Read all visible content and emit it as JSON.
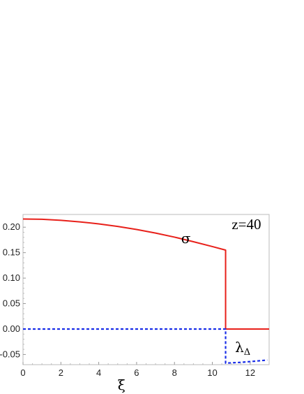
{
  "chart_data": {
    "type": "line",
    "xlabel": "ξ",
    "ylabel": "",
    "xlim": [
      0,
      13
    ],
    "ylim": [
      -0.07,
      0.225
    ],
    "x_ticks": [
      0,
      2,
      4,
      6,
      8,
      10,
      12
    ],
    "y_ticks": [
      -0.05,
      0.0,
      0.05,
      0.1,
      0.15,
      0.2
    ],
    "y_tick_labels": [
      "-0.05",
      "0.00",
      "0.05",
      "0.10",
      "0.15",
      "0.20"
    ],
    "grid": false,
    "annotations": [
      {
        "text": "z=40",
        "x": 11.8,
        "y": 0.196
      },
      {
        "text": "σ",
        "x": 8.6,
        "y": 0.169
      },
      {
        "text": "λΔ",
        "x": 11.2,
        "y": -0.045
      }
    ],
    "series": [
      {
        "name": "σ",
        "color": "#e8201a",
        "style": "solid",
        "points": [
          [
            0,
            0.216
          ],
          [
            1,
            0.2155
          ],
          [
            2,
            0.2135
          ],
          [
            3,
            0.2105
          ],
          [
            4,
            0.2065
          ],
          [
            5,
            0.2015
          ],
          [
            6,
            0.1955
          ],
          [
            7,
            0.1885
          ],
          [
            8,
            0.1805
          ],
          [
            9,
            0.1715
          ],
          [
            10,
            0.162
          ],
          [
            10.7,
            0.155
          ],
          [
            10.7,
            0.0
          ],
          [
            13,
            0.0
          ]
        ]
      },
      {
        "name": "λΔ",
        "color": "#1a2ee8",
        "style": "dashed",
        "points": [
          [
            0,
            0.0
          ],
          [
            10.7,
            0.0
          ],
          [
            10.7,
            -0.067
          ],
          [
            11.5,
            -0.0655
          ],
          [
            12.3,
            -0.063
          ],
          [
            12.9,
            -0.061
          ]
        ]
      }
    ]
  }
}
